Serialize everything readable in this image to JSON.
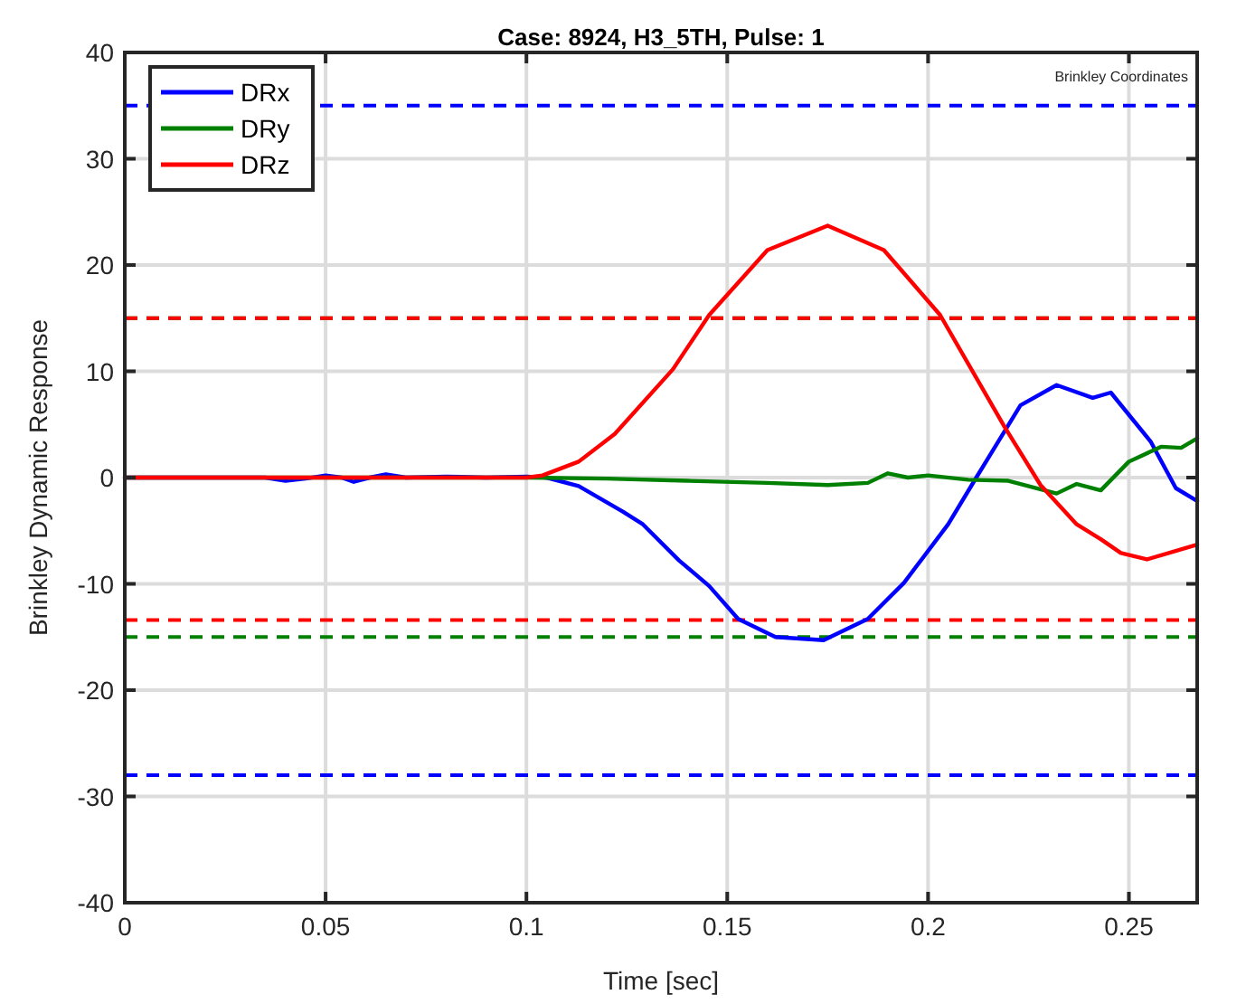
{
  "chart_data": {
    "type": "line",
    "title": "Case: 8924, H3_5TH, Pulse: 1",
    "xlabel": "Time [sec]",
    "ylabel": "Brinkley Dynamic Response",
    "annotations": [
      "Brinkley Coordinates"
    ],
    "xlim": [
      0,
      0.267
    ],
    "xticks": [
      0,
      0.05,
      0.1,
      0.15,
      0.2,
      0.25
    ],
    "ylim": [
      -40,
      40
    ],
    "yticks": [
      -40,
      -30,
      -20,
      -10,
      0,
      10,
      20,
      30,
      40
    ],
    "grid": true,
    "legend": "top left",
    "line_style": "solid",
    "series": [
      {
        "name": "DRx",
        "color": "#0000ff",
        "x": [
          0,
          0.035,
          0.04,
          0.045,
          0.05,
          0.054,
          0.057,
          0.061,
          0.065,
          0.07,
          0.08,
          0.09,
          0.1,
          0.105,
          0.113,
          0.124,
          0.129,
          0.138,
          0.1455,
          0.1527,
          0.162,
          0.174,
          0.185,
          0.194,
          0.205,
          0.212,
          0.223,
          0.232,
          0.241,
          0.2455,
          0.2554,
          0.2617,
          0.267
        ],
        "values": [
          0,
          0,
          -0.3,
          -0.1,
          0.2,
          0,
          -0.4,
          0,
          0.3,
          0,
          0.1,
          0,
          0.1,
          0,
          -0.8,
          -3.2,
          -4.4,
          -7.8,
          -10.2,
          -13.3,
          -15,
          -15.3,
          -13.3,
          -9.9,
          -4.4,
          0,
          6.8,
          8.7,
          7.5,
          8,
          3.4,
          -1,
          -2.2
        ]
      },
      {
        "name": "DRy",
        "color": "#008000",
        "x": [
          0,
          0.1,
          0.12,
          0.14,
          0.16,
          0.175,
          0.185,
          0.19,
          0.195,
          0.2,
          0.21,
          0.22,
          0.232,
          0.237,
          0.243,
          0.25,
          0.258,
          0.263,
          0.267
        ],
        "values": [
          0,
          0,
          -0.1,
          -0.3,
          -0.5,
          -0.7,
          -0.5,
          0.4,
          0,
          0.2,
          -0.2,
          -0.3,
          -1.5,
          -0.6,
          -1.2,
          1.5,
          2.9,
          2.8,
          3.7
        ]
      },
      {
        "name": "DRz",
        "color": "#ff0000",
        "x": [
          0,
          0.1,
          0.104,
          0.113,
          0.122,
          0.1365,
          0.1455,
          0.16,
          0.175,
          0.189,
          0.203,
          0.219,
          0.228,
          0.237,
          0.243,
          0.248,
          0.2545,
          0.267
        ],
        "values": [
          0,
          0,
          0.2,
          1.5,
          4.1,
          10.2,
          15.3,
          21.4,
          23.7,
          21.4,
          15.3,
          4.8,
          -0.7,
          -4.4,
          -5.8,
          -7.1,
          -7.7,
          -6.3
        ]
      }
    ],
    "ref_lines": [
      {
        "axis": "y",
        "value": 35,
        "color": "#0000ff",
        "line_style": "dashed"
      },
      {
        "axis": "y",
        "value": 15,
        "color": "#008000",
        "line_style": "dashed"
      },
      {
        "axis": "y",
        "value": 15,
        "color": "#ff0000",
        "line_style": "dashed"
      },
      {
        "axis": "y",
        "value": -13.4,
        "color": "#ff0000",
        "line_style": "dashed"
      },
      {
        "axis": "y",
        "value": -15,
        "color": "#008000",
        "line_style": "dashed"
      },
      {
        "axis": "y",
        "value": -28,
        "color": "#0000ff",
        "line_style": "dashed"
      }
    ]
  }
}
